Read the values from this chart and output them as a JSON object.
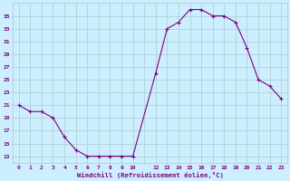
{
  "x": [
    0,
    1,
    2,
    3,
    4,
    5,
    6,
    7,
    8,
    9,
    10,
    12,
    13,
    14,
    15,
    16,
    17,
    18,
    19,
    20,
    21,
    22,
    23
  ],
  "y": [
    21,
    20,
    20,
    19,
    16,
    14,
    13,
    13,
    13,
    13,
    13,
    26,
    33,
    34,
    36,
    36,
    35,
    35,
    34,
    30,
    25,
    24,
    22
  ],
  "line_color": "#800080",
  "marker": "+",
  "bg_color": "#cceeff",
  "grid_color": "#aacccc",
  "xlabel": "Windchill (Refroidissement éolien,°C)",
  "xlabel_color": "#800080",
  "tick_color": "#800080",
  "yticks": [
    13,
    15,
    17,
    19,
    21,
    23,
    25,
    27,
    29,
    31,
    33,
    35
  ],
  "xtick_labels": [
    "0",
    "1",
    "2",
    "3",
    "4",
    "5",
    "6",
    "7",
    "8",
    "9",
    "10",
    "",
    "12",
    "13",
    "14",
    "15",
    "16",
    "17",
    "18",
    "19",
    "20",
    "21",
    "22",
    "23"
  ],
  "xtick_positions": [
    0,
    1,
    2,
    3,
    4,
    5,
    6,
    7,
    8,
    9,
    10,
    11,
    12,
    13,
    14,
    15,
    16,
    17,
    18,
    19,
    20,
    21,
    22,
    23
  ],
  "ylim": [
    12,
    37
  ],
  "xlim": [
    -0.5,
    23.5
  ]
}
